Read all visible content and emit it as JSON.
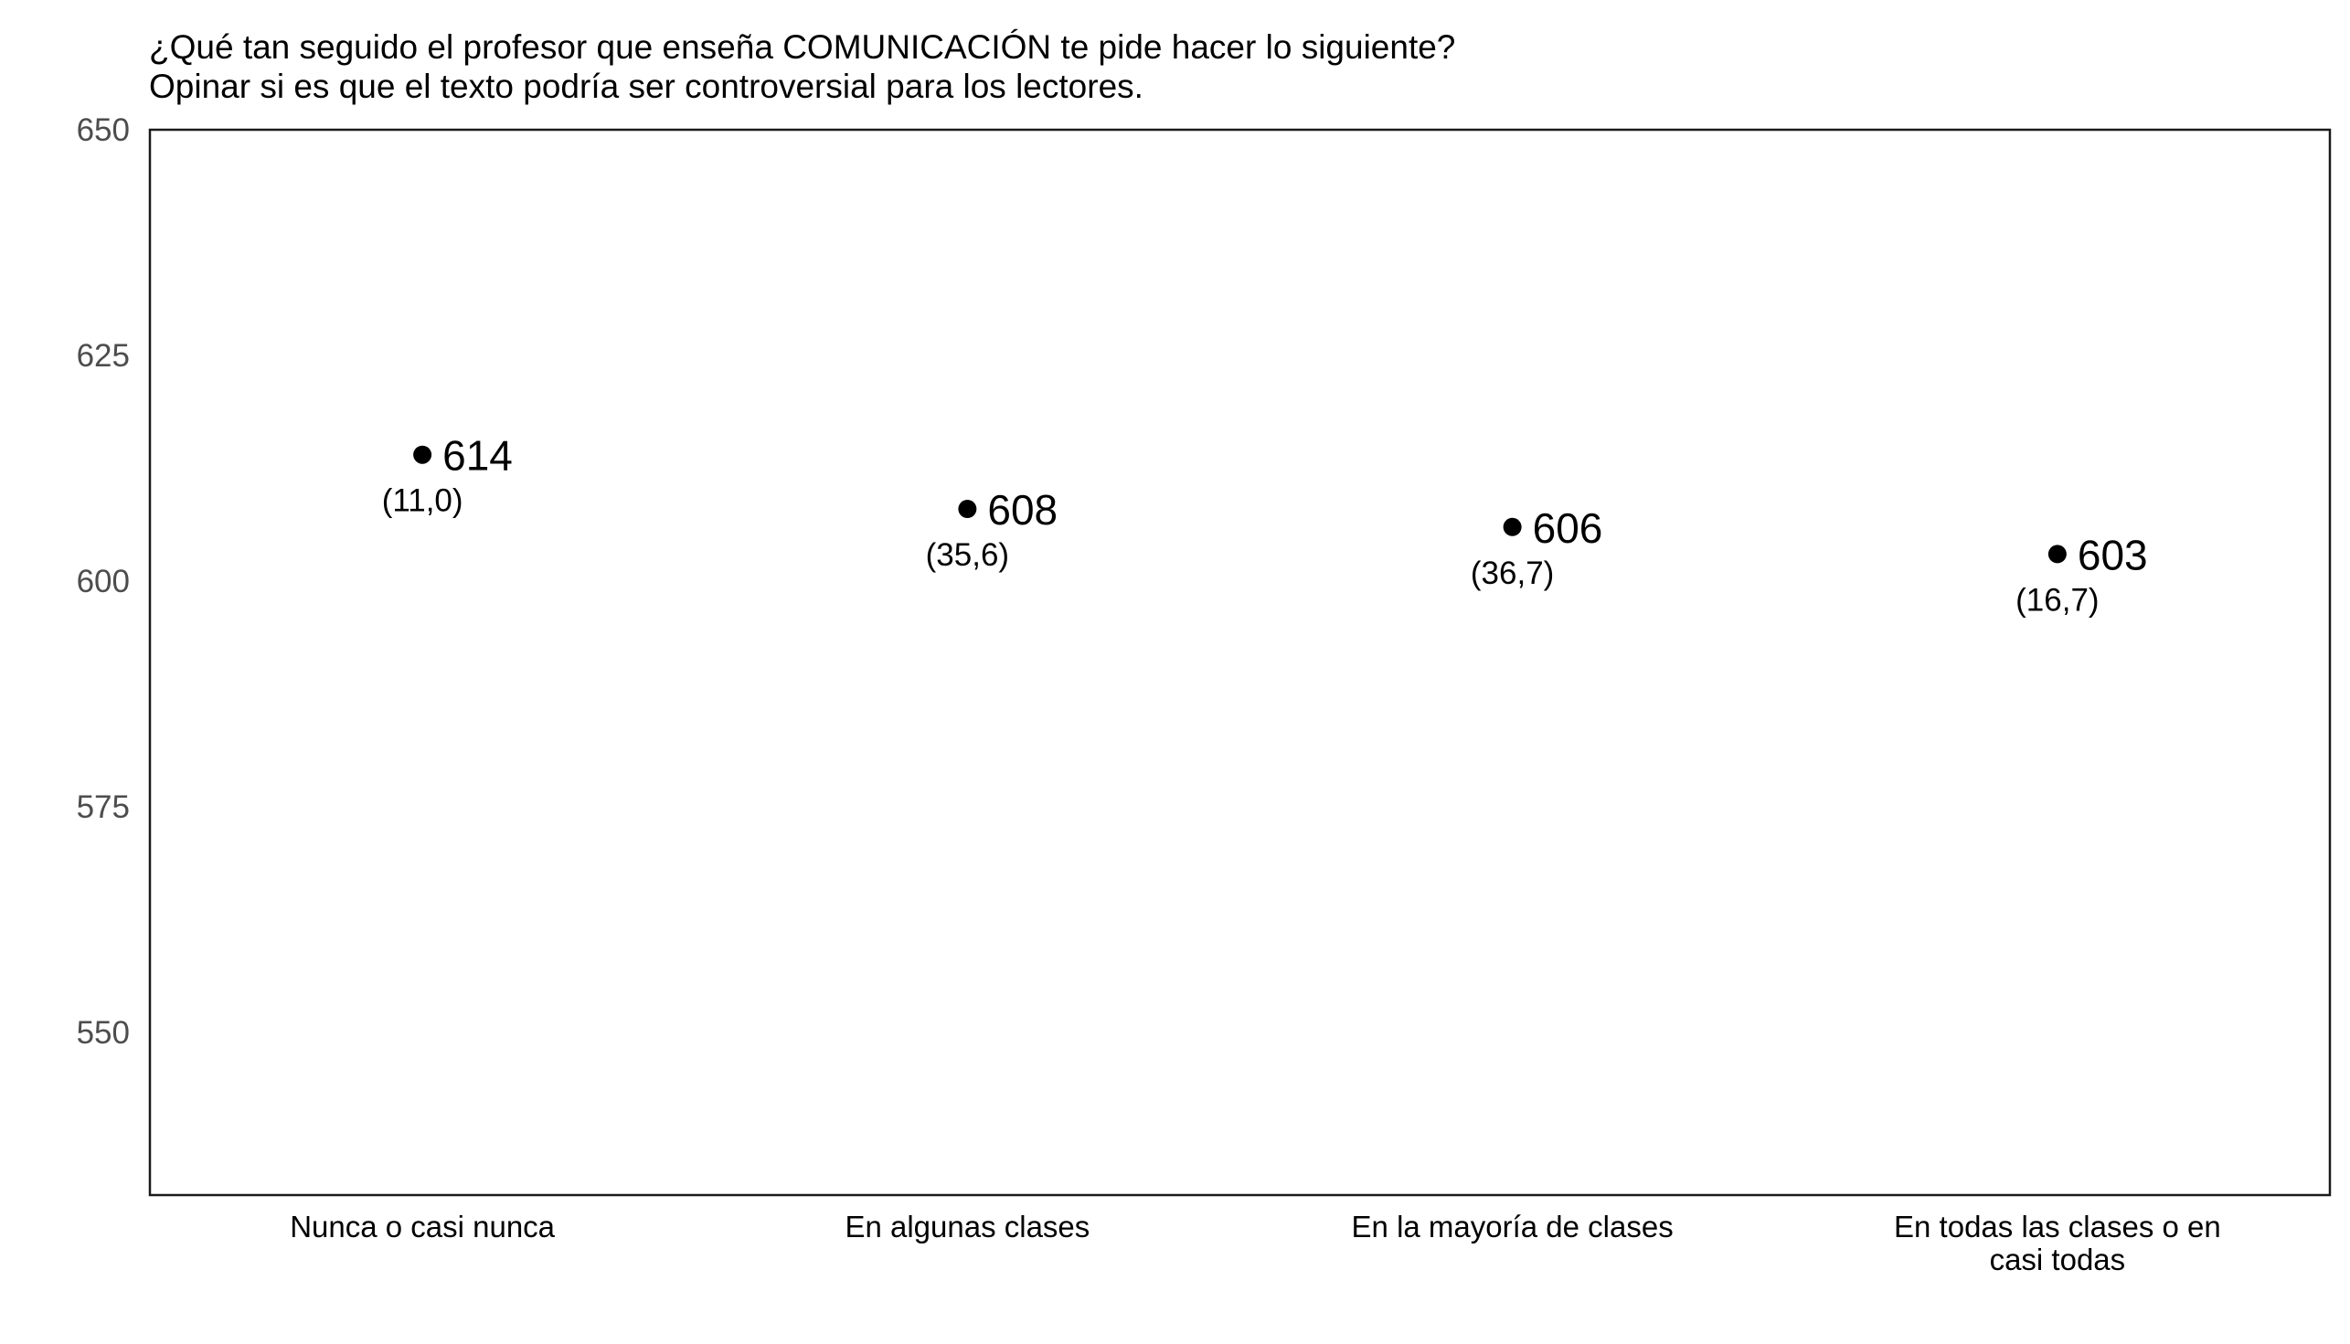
{
  "chart_data": {
    "type": "scatter",
    "title": "¿Qué tan seguido el profesor que enseña COMUNICACIÓN te pide hacer lo siguiente?",
    "subtitle": "Opinar si es que el texto podría ser controversial para los lectores.",
    "categories": [
      [
        "Nunca o casi nunca"
      ],
      [
        "En algunas clases"
      ],
      [
        "En la mayoría de clases"
      ],
      [
        "En todas las clases o en",
        "casi todas"
      ]
    ],
    "values": [
      614,
      608,
      606,
      603
    ],
    "value_labels": [
      "614",
      "608",
      "606",
      "603"
    ],
    "percent_labels": [
      "(11,0)",
      "(35,6)",
      "(36,7)",
      "(16,7)"
    ],
    "ylim": [
      532,
      650
    ],
    "yticks": [
      550,
      575,
      600,
      625,
      650
    ],
    "xlabel": "",
    "ylabel": "",
    "grid": false,
    "legend": false,
    "point_color": "#000000"
  }
}
